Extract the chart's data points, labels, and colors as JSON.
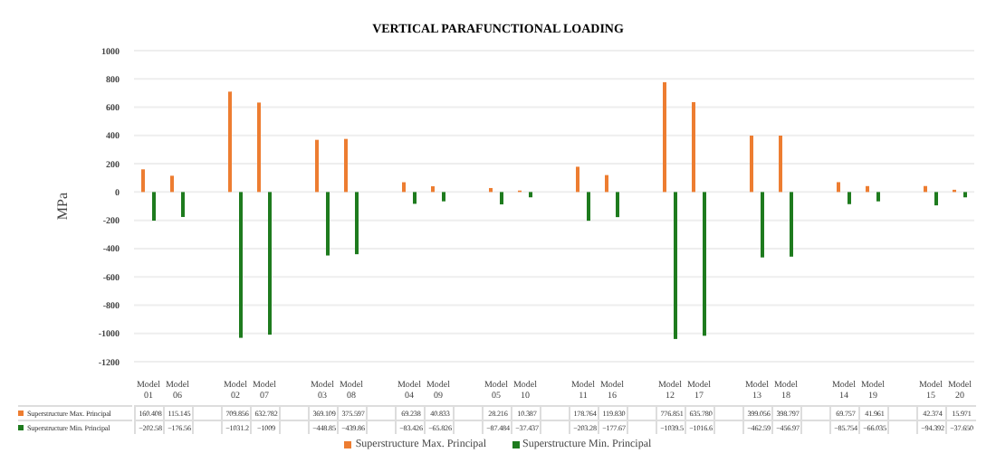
{
  "chart_data": {
    "type": "bar",
    "title": "VERTICAL PARAFUNCTIONAL LOADING",
    "ylabel": "MPa",
    "categories": [
      "Model 01",
      "Model 06",
      null,
      "Model 02",
      "Model 07",
      null,
      "Model 03",
      "Model 08",
      null,
      "Model 04",
      "Model 09",
      null,
      "Model 05",
      "Model 10",
      null,
      "Model 11",
      "Model 16",
      null,
      "Model 12",
      "Model 17",
      null,
      "Model 13",
      "Model 18",
      null,
      "Model 14",
      "Model 19",
      null,
      "Model 15",
      "Model 20"
    ],
    "series": [
      {
        "name": "Superstructure Max. Principal",
        "color": "#ed7d31",
        "values": [
          160.408,
          115.145,
          null,
          709.856,
          632.782,
          null,
          369.109,
          375.597,
          null,
          69.238,
          40.833,
          null,
          28.216,
          10.387,
          null,
          178.764,
          119.83,
          null,
          776.851,
          635.78,
          null,
          399.056,
          398.797,
          null,
          69.757,
          41.961,
          null,
          42.374,
          15.971
        ],
        "value_labels": [
          "160.408",
          "115.145",
          null,
          "709.856",
          "632.782",
          null,
          "369.109",
          "375.597",
          null,
          "69.238",
          "40.833",
          null,
          "28.216",
          "10.387",
          null,
          "178.764",
          "119.830",
          null,
          "776.851",
          "635.780",
          null,
          "399.056",
          "398.797",
          null,
          "69.757",
          "41.961",
          null,
          "42.374",
          "15.971"
        ]
      },
      {
        "name": "Superstructure Min. Principal",
        "color": "#1e7b1e",
        "values": [
          -202.58,
          -176.56,
          null,
          -1031.2,
          -1009,
          null,
          -448.85,
          -439.86,
          null,
          -83.426,
          -65.826,
          null,
          -87.484,
          -37.437,
          null,
          -203.28,
          -177.67,
          null,
          -1039.5,
          -1016.6,
          null,
          -462.59,
          -456.97,
          null,
          -85.754,
          -66.035,
          null,
          -94.392,
          -37.65
        ],
        "value_labels": [
          "−202.58",
          "−176.56",
          null,
          "−1031.2",
          "−1009",
          null,
          "−448.85",
          "−439.86",
          null,
          "−83.426",
          "−65.826",
          null,
          "−87.484",
          "−37.437",
          null,
          "−203.28",
          "−177.67",
          null,
          "−1039.5",
          "−1016.6",
          null,
          "−462.59",
          "−456.97",
          null,
          "−85.754",
          "−66.035",
          null,
          "−94.392",
          "−37.650"
        ]
      }
    ],
    "ylim": [
      -1200,
      1000
    ],
    "yticks": [
      -1200,
      -1000,
      -800,
      -600,
      -400,
      -200,
      0,
      200,
      400,
      600,
      800,
      1000
    ],
    "grid": "y",
    "legend": "bottom"
  }
}
